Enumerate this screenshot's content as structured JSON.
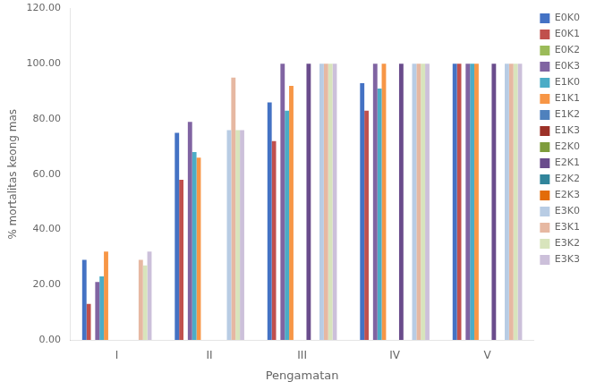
{
  "chart_data": {
    "type": "bar",
    "categories": [
      "I",
      "II",
      "III",
      "IV",
      "V"
    ],
    "series": [
      {
        "name": "E0K0",
        "color": "#4472C4",
        "values": [
          29,
          75,
          86,
          93,
          100
        ]
      },
      {
        "name": "E0K1",
        "color": "#C0504D",
        "values": [
          13,
          58,
          72,
          83,
          100
        ]
      },
      {
        "name": "E0K2",
        "color": "#9BBB59",
        "values": [
          0,
          0,
          0,
          0,
          0
        ]
      },
      {
        "name": "E0K3",
        "color": "#8064A2",
        "values": [
          21,
          79,
          100,
          100,
          100
        ]
      },
      {
        "name": "E1K0",
        "color": "#4BACC6",
        "values": [
          23,
          68,
          83,
          91,
          100
        ]
      },
      {
        "name": "E1K1",
        "color": "#F79646",
        "values": [
          32,
          66,
          92,
          100,
          100
        ]
      },
      {
        "name": "E1K2",
        "color": "#4F81BD",
        "values": [
          0,
          0,
          0,
          0,
          0
        ]
      },
      {
        "name": "E1K3",
        "color": "#9C3128",
        "values": [
          0,
          0,
          0,
          0,
          0
        ]
      },
      {
        "name": "E2K0",
        "color": "#7E9C3C",
        "values": [
          0,
          0,
          0,
          0,
          0
        ]
      },
      {
        "name": "E2K1",
        "color": "#6A4C8C",
        "values": [
          0,
          0,
          100,
          100,
          100
        ]
      },
      {
        "name": "E2K2",
        "color": "#31859B",
        "values": [
          0,
          0,
          0,
          0,
          0
        ]
      },
      {
        "name": "E2K3",
        "color": "#E36C09",
        "values": [
          0,
          0,
          0,
          0,
          0
        ]
      },
      {
        "name": "E3K0",
        "color": "#B8CCE4",
        "values": [
          0,
          76,
          100,
          100,
          100
        ]
      },
      {
        "name": "E3K1",
        "color": "#E6B8A2",
        "values": [
          29,
          95,
          100,
          100,
          100
        ]
      },
      {
        "name": "E3K2",
        "color": "#D8E4BC",
        "values": [
          27,
          76,
          100,
          100,
          100
        ]
      },
      {
        "name": "E3K3",
        "color": "#CCC0DA",
        "values": [
          32,
          76,
          100,
          100,
          100
        ]
      }
    ],
    "xlabel": "Pengamatan",
    "ylabel": "% mortalitas keong mas",
    "ylim": [
      0,
      120
    ],
    "yticks": [
      {
        "value": 0,
        "label": "0.00"
      },
      {
        "value": 20,
        "label": "20.00"
      },
      {
        "value": 40,
        "label": "40.00"
      },
      {
        "value": 60,
        "label": "60.00"
      },
      {
        "value": 80,
        "label": "80.00"
      },
      {
        "value": 100,
        "label": "100.00"
      },
      {
        "value": 120,
        "label": "120.00"
      }
    ],
    "grid": false,
    "legend": "right"
  }
}
